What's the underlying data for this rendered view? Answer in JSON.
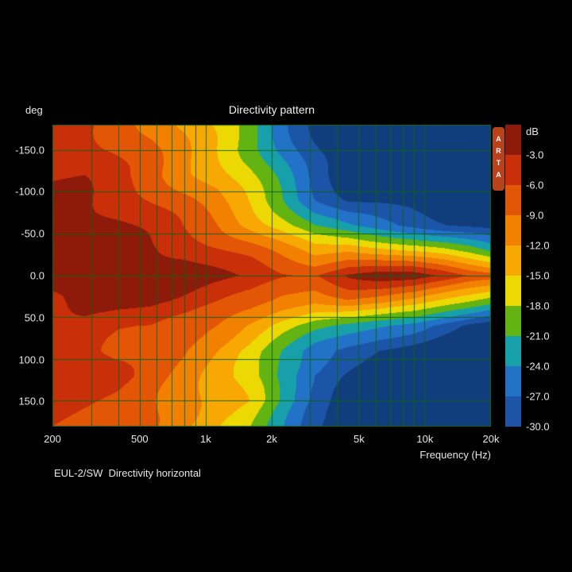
{
  "chart_data": {
    "type": "heatmap",
    "title": "Directivity pattern",
    "xlabel": "Frequency (Hz)",
    "ylabel": "deg",
    "footer": "EUL-2/SW  Directivity horizontal",
    "branding": "ARTA",
    "branding_bg_color": "#b8431a",
    "x_scale": "log",
    "x_range": [
      200,
      20000
    ],
    "y_range": [
      -180,
      180
    ],
    "x_ticks": [
      {
        "value": 200,
        "label": "200"
      },
      {
        "value": 500,
        "label": "500"
      },
      {
        "value": 1000,
        "label": "1k"
      },
      {
        "value": 2000,
        "label": "2k"
      },
      {
        "value": 5000,
        "label": "5k"
      },
      {
        "value": 10000,
        "label": "10k"
      },
      {
        "value": 20000,
        "label": "20k"
      }
    ],
    "x_minor_gridlines": [
      200,
      300,
      400,
      500,
      600,
      700,
      800,
      900,
      1000,
      2000,
      3000,
      4000,
      5000,
      6000,
      7000,
      8000,
      9000,
      10000,
      20000
    ],
    "y_ticks": [
      {
        "value": -150,
        "label": "-150.0"
      },
      {
        "value": -100,
        "label": "-100.0"
      },
      {
        "value": -50,
        "label": "-50.0"
      },
      {
        "value": 0,
        "label": "0.0"
      },
      {
        "value": 50,
        "label": "50.0"
      },
      {
        "value": 100,
        "label": "100.0"
      },
      {
        "value": 150,
        "label": "150.0"
      }
    ],
    "y_gridlines": [
      -150,
      -100,
      -50,
      0,
      50,
      100,
      150
    ],
    "grid_color": "#0c6414",
    "colorbar": {
      "label": "dB",
      "tick_labels": [
        "-3.0",
        "-6.0",
        "-9.0",
        "-12.0",
        "-15.0",
        "-18.0",
        "-21.0",
        "-24.0",
        "-27.0",
        "-30.0"
      ],
      "band_size_db": 3
    },
    "palette": [
      "#8e1a0c",
      "#c92f08",
      "#e25606",
      "#f28100",
      "#f8a802",
      "#ecd904",
      "#63b312",
      "#18a0aa",
      "#2272c8",
      "#1c55a8",
      "#123d7c"
    ],
    "grid": {
      "frequencies_hz": [
        200,
        280,
        400,
        560,
        800,
        1120,
        1600,
        2240,
        3150,
        4500,
        6300,
        9000,
        12500,
        16000,
        20000
      ],
      "angles_deg": [
        -180,
        -150,
        -120,
        -90,
        -60,
        -30,
        0,
        30,
        60,
        90,
        120,
        150,
        180
      ],
      "values_db": [
        [
          -6,
          -6,
          -8,
          -10,
          -13,
          -16,
          -20,
          -26,
          -30,
          -33,
          -33,
          -33,
          -33,
          -33,
          -33
        ],
        [
          -5,
          -5,
          -7,
          -9,
          -12,
          -15,
          -19,
          -24,
          -29,
          -33,
          -33,
          -33,
          -33,
          -33,
          -33
        ],
        [
          -4,
          -4,
          -6,
          -8,
          -11,
          -13,
          -17,
          -22,
          -28,
          -32,
          -33,
          -33,
          -33,
          -33,
          -33
        ],
        [
          -3,
          -3,
          -4,
          -6,
          -8,
          -11,
          -15,
          -20,
          -26,
          -30,
          -31,
          -32,
          -33,
          -33,
          -33
        ],
        [
          -2,
          -2,
          -3,
          -4,
          -6,
          -8,
          -12,
          -16,
          -21,
          -24,
          -26,
          -28,
          -30,
          -31,
          -32
        ],
        [
          -2,
          -1,
          -1,
          -2,
          -3,
          -5,
          -7,
          -10,
          -13,
          -12,
          -14,
          -16,
          -18,
          -20,
          -22
        ],
        [
          -2,
          -1,
          -0.5,
          -0.5,
          -1,
          -2,
          -3,
          -5,
          -6,
          -3,
          -2,
          -2,
          -4,
          -6,
          -7
        ],
        [
          -3,
          -2,
          -2,
          -2,
          -3,
          -5,
          -7,
          -10,
          -12,
          -10,
          -11,
          -13,
          -16,
          -18,
          -20
        ],
        [
          -4,
          -4,
          -5,
          -5,
          -7,
          -9,
          -13,
          -17,
          -20,
          -22,
          -24,
          -26,
          -29,
          -31,
          -32
        ],
        [
          -3,
          -4,
          -6,
          -7,
          -9,
          -12,
          -16,
          -21,
          -26,
          -29,
          -31,
          -32,
          -33,
          -33,
          -33
        ],
        [
          -3,
          -4,
          -5,
          -7,
          -10,
          -13,
          -17,
          -23,
          -28,
          -31,
          -33,
          -33,
          -33,
          -33,
          -33
        ],
        [
          -4,
          -5,
          -6,
          -8,
          -11,
          -14,
          -16,
          -22,
          -28,
          -32,
          -33,
          -33,
          -33,
          -33,
          -33
        ],
        [
          -5,
          -6,
          -7,
          -9,
          -12,
          -15,
          -18,
          -24,
          -30,
          -33,
          -33,
          -33,
          -33,
          -33,
          -33
        ]
      ]
    }
  }
}
